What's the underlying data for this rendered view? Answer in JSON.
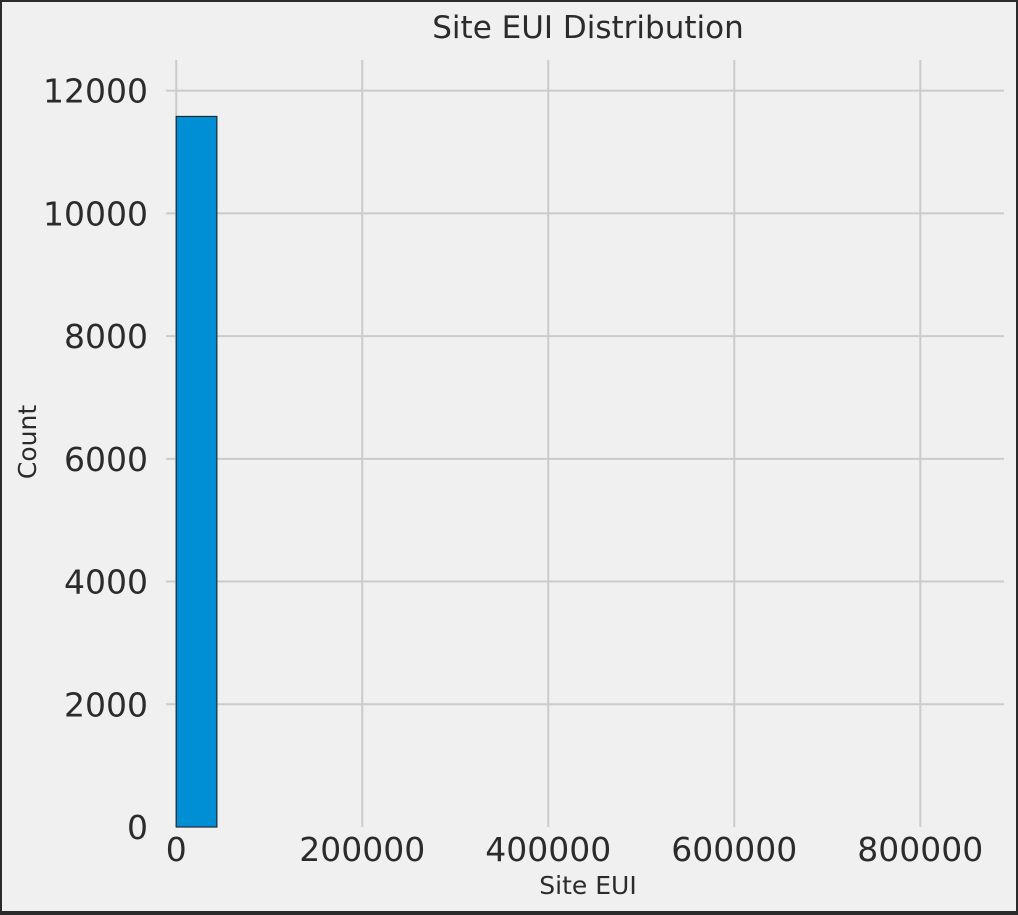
{
  "chart_data": {
    "type": "bar",
    "title": "Site EUI Distribution",
    "xlabel": "Site EUI",
    "ylabel": "Count",
    "xlim": [
      -11000,
      890000
    ],
    "ylim": [
      0,
      12500
    ],
    "xticks": [
      {
        "value": 0,
        "label": "0"
      },
      {
        "value": 200000,
        "label": "200000"
      },
      {
        "value": 400000,
        "label": "400000"
      },
      {
        "value": 600000,
        "label": "600000"
      },
      {
        "value": 800000,
        "label": "800000"
      }
    ],
    "yticks": [
      {
        "value": 0,
        "label": "0"
      },
      {
        "value": 2000,
        "label": "2000"
      },
      {
        "value": 4000,
        "label": "4000"
      },
      {
        "value": 6000,
        "label": "6000"
      },
      {
        "value": 8000,
        "label": "8000"
      },
      {
        "value": 10000,
        "label": "10000"
      },
      {
        "value": 12000,
        "label": "12000"
      }
    ],
    "grid": true,
    "bins": [
      {
        "start": 0,
        "end": 43700,
        "count": 11580
      }
    ],
    "colors": {
      "bar": "#008fd5",
      "background": "#f0f0f0",
      "grid": "#cbcbcb",
      "text": "#2b2b2b"
    }
  }
}
